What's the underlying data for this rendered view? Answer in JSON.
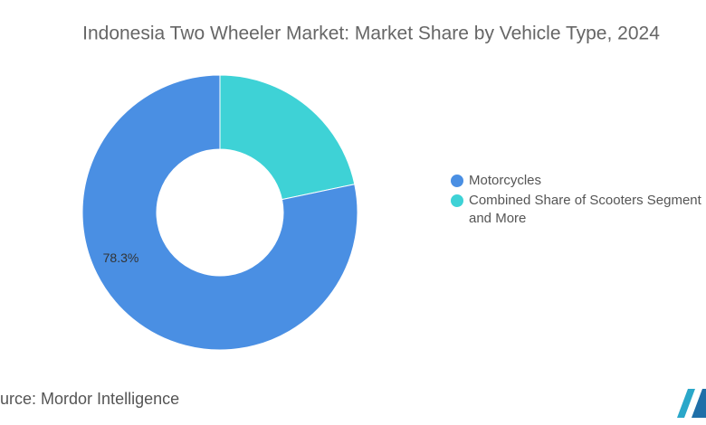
{
  "chart_data": {
    "type": "donut",
    "title": "Indonesia Two Wheeler Market: Market Share by Vehicle Type, 2024",
    "categories": [
      "Motorcycles",
      "Combined Share of Scooters Segment and More"
    ],
    "values": [
      78.3,
      21.7
    ],
    "value_labels": [
      "78.3%",
      null
    ],
    "colors": [
      "#4a8fe3",
      "#3ed2d6"
    ],
    "source": "Source: Mordor Intelligence"
  }
}
